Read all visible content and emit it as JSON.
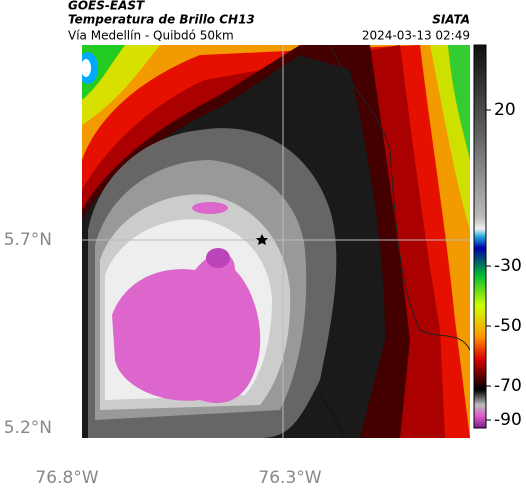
{
  "header": {
    "title": "GOES-EAST",
    "subtitle": "Temperatura de Brillo CH13",
    "source": "SIATA",
    "route": "Vía Medellín - Quibdó 50km",
    "timestamp": "2024-03-13 02:49"
  },
  "map": {
    "lat_labels": [
      "5.7°N",
      "5.2°N"
    ],
    "lon_labels": [
      "76.8°W",
      "76.3°W"
    ]
  },
  "colorbar": {
    "ticks": [
      20,
      -30,
      -50,
      -70,
      -90
    ]
  }
}
